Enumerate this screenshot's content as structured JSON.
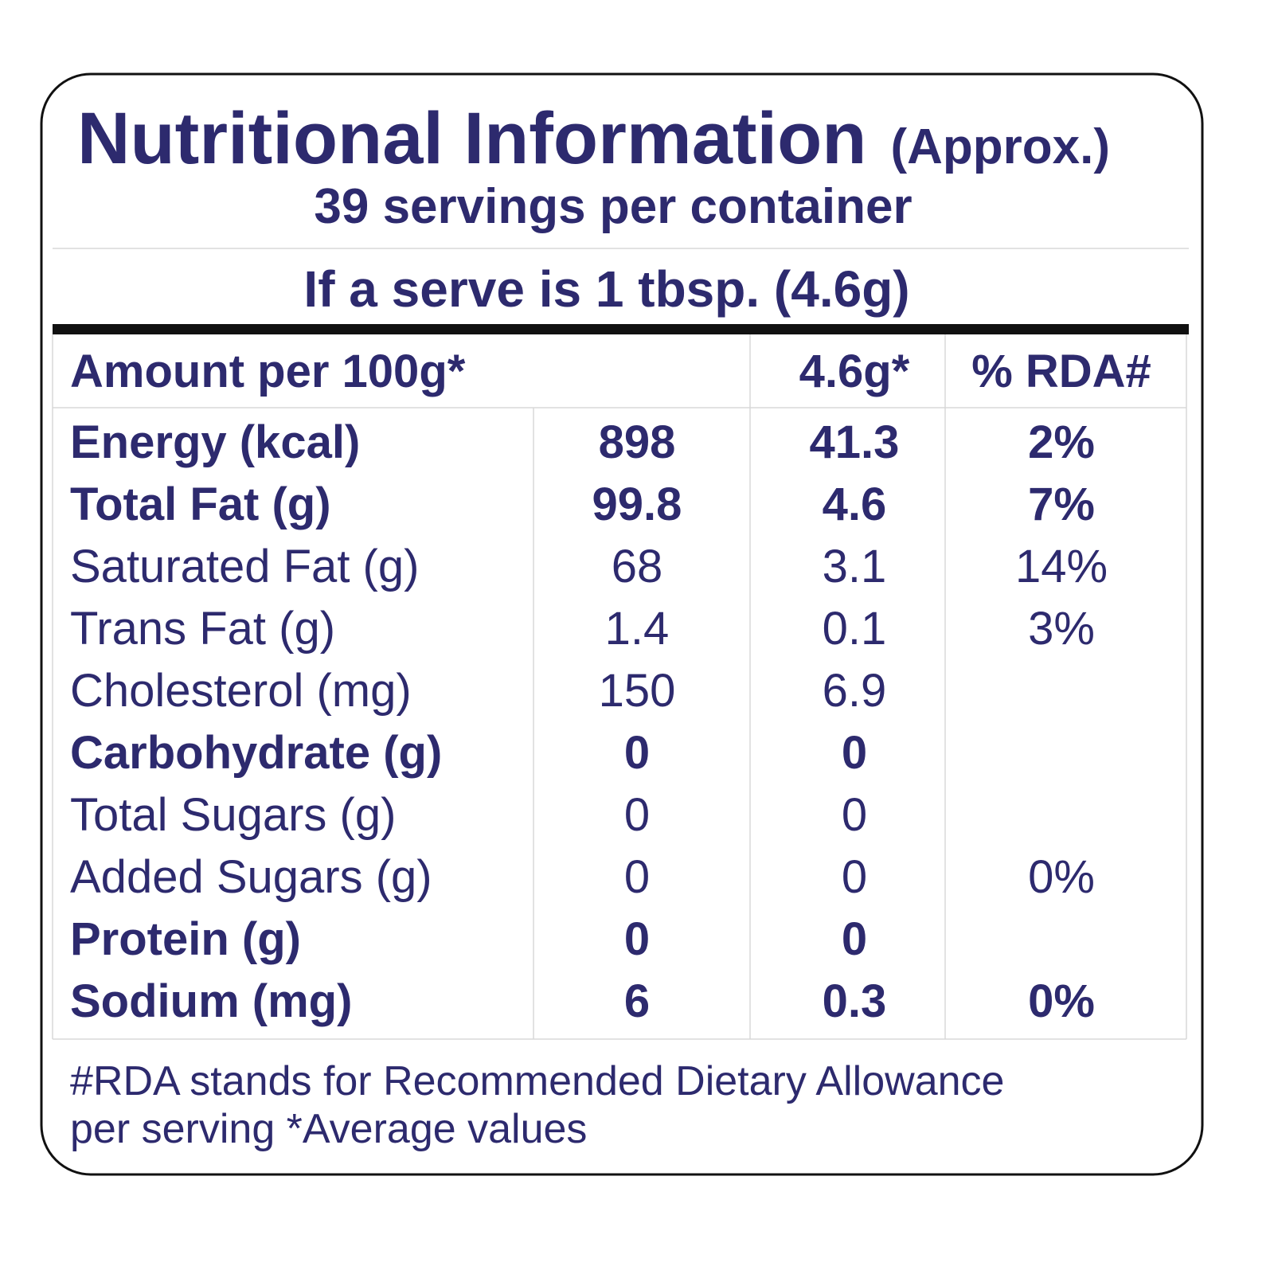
{
  "header": {
    "title": "Nutritional Information",
    "approx": "(Approx.)",
    "servings": "39 servings per container",
    "serve_size": "If a serve is 1 tbsp. (4.6g)"
  },
  "table": {
    "columns": [
      "Amount per 100g*",
      "4.6g*",
      "% RDA#"
    ],
    "rows": [
      {
        "label": "Energy (kcal)",
        "per_100g": "898",
        "per_serve": "41.3",
        "rda": "2%",
        "bold": true
      },
      {
        "label": "Total Fat (g)",
        "per_100g": "99.8",
        "per_serve": "4.6",
        "rda": "7%",
        "bold": true
      },
      {
        "label": "Saturated Fat (g)",
        "per_100g": "68",
        "per_serve": "3.1",
        "rda": "14%",
        "bold": false
      },
      {
        "label": "Trans Fat (g)",
        "per_100g": "1.4",
        "per_serve": "0.1",
        "rda": "3%",
        "bold": false
      },
      {
        "label": "Cholesterol (mg)",
        "per_100g": "150",
        "per_serve": "6.9",
        "rda": null,
        "bold": false
      },
      {
        "label": "Carbohydrate (g)",
        "per_100g": "0",
        "per_serve": "0",
        "rda": null,
        "bold": true
      },
      {
        "label": "Total Sugars (g)",
        "per_100g": "0",
        "per_serve": "0",
        "rda": null,
        "bold": false
      },
      {
        "label": "Added Sugars (g)",
        "per_100g": "0",
        "per_serve": "0",
        "rda": "0%",
        "bold": false
      },
      {
        "label": "Protein (g)",
        "per_100g": "0",
        "per_serve": "0",
        "rda": null,
        "bold": true
      },
      {
        "label": "Sodium (mg)",
        "per_100g": "6",
        "per_serve": "0.3",
        "rda": "0%",
        "bold": true
      }
    ]
  },
  "footnote": [
    "#RDA stands for Recommended Dietary Allowance",
    "per serving *Average values"
  ]
}
